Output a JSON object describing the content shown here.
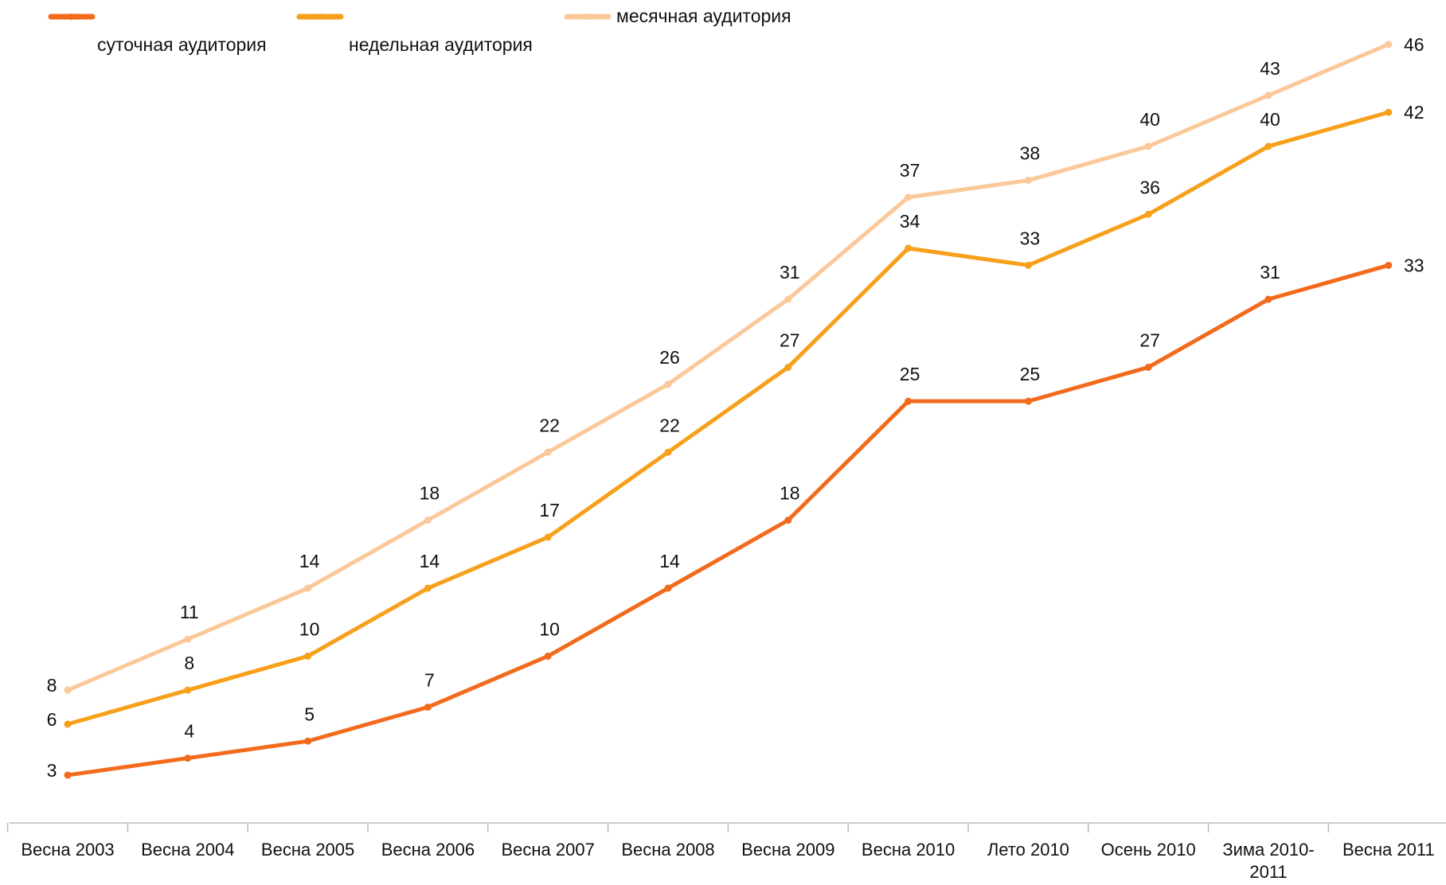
{
  "chart_data": {
    "type": "line",
    "categories": [
      "Весна 2003",
      "Весна 2004",
      "Весна 2005",
      "Весна 2006",
      "Весна 2007",
      "Весна 2008",
      "Весна 2009",
      "Весна 2010",
      "Лето 2010",
      "Осень 2010",
      "Зима 2010-2011",
      "Весна 2011"
    ],
    "series": [
      {
        "name": "суточная аудитория",
        "color": "#f26b1d",
        "values": [
          3,
          4,
          5,
          7,
          10,
          14,
          18,
          25,
          25,
          27,
          31,
          33
        ]
      },
      {
        "name": "недельная аудитория",
        "color": "#f7a01b",
        "values": [
          6,
          8,
          10,
          14,
          17,
          22,
          27,
          34,
          33,
          36,
          40,
          42
        ]
      },
      {
        "name": "месячная аудитория",
        "color": "#fbc89a",
        "values": [
          8,
          11,
          14,
          18,
          22,
          26,
          31,
          37,
          38,
          40,
          43,
          46
        ]
      }
    ],
    "ylim": [
      0,
      48
    ],
    "legend": "top",
    "grid": false
  }
}
